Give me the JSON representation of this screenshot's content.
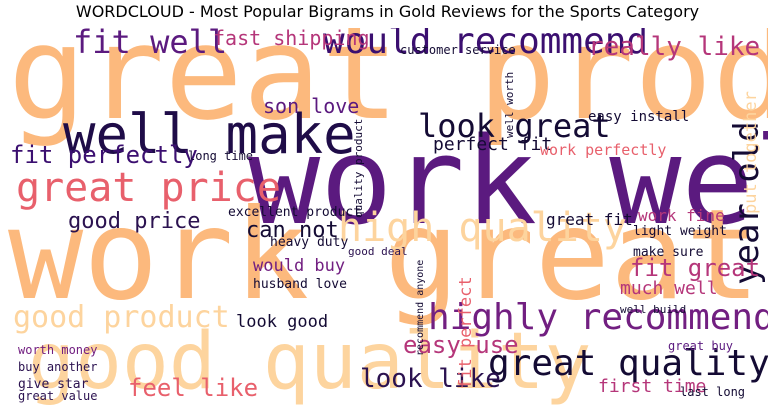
{
  "title": "WORDCLOUD - Most Popular Bigrams in Gold Reviews for the Sports Category",
  "palette": {
    "peach": "#fcb97d",
    "light_peach": "#fdd49e",
    "salmon": "#f3766e",
    "coral": "#e8606c",
    "magenta": "#b5367a",
    "purple": "#721f81",
    "deep_purple": "#5b1a7f",
    "dark_indigo": "#2b1250",
    "near_black": "#140b34"
  },
  "words": [
    {
      "text": "work well",
      "weight": 1.0,
      "color": "#5b1a7f"
    },
    {
      "text": "great product",
      "weight": 0.97,
      "color": "#fcb97d"
    },
    {
      "text": "work great",
      "weight": 0.96,
      "color": "#fcb97d"
    },
    {
      "text": "good quality",
      "weight": 0.7,
      "color": "#fdd49e"
    },
    {
      "text": "well make",
      "weight": 0.55,
      "color": "#1f0c48"
    },
    {
      "text": "great price",
      "weight": 0.42,
      "color": "#e8606c"
    },
    {
      "text": "would recommend",
      "weight": 0.42,
      "color": "#3b0f70"
    },
    {
      "text": "highly recommend",
      "weight": 0.42,
      "color": "#721f81"
    },
    {
      "text": "great quality",
      "weight": 0.42,
      "color": "#140b34"
    },
    {
      "text": "good product",
      "weight": 0.4,
      "color": "#fdd49e"
    },
    {
      "text": "year old",
      "weight": 0.4,
      "color": "#140b34"
    },
    {
      "text": "look great",
      "weight": 0.36,
      "color": "#140b34"
    },
    {
      "text": "high quality",
      "weight": 0.38,
      "color": "#fdd49e"
    },
    {
      "text": "fit well",
      "weight": 0.36,
      "color": "#5b1a7f"
    },
    {
      "text": "fit perfectly",
      "weight": 0.3,
      "color": "#3b0f70"
    },
    {
      "text": "look like",
      "weight": 0.32,
      "color": "#2b1250"
    },
    {
      "text": "feel like",
      "weight": 0.3,
      "color": "#e8606c"
    },
    {
      "text": "easy use",
      "weight": 0.3,
      "color": "#b5367a"
    },
    {
      "text": "fit great",
      "weight": 0.28,
      "color": "#b5367a"
    },
    {
      "text": "really like",
      "weight": 0.3,
      "color": "#b5367a"
    },
    {
      "text": "fast shipping",
      "weight": 0.26,
      "color": "#b5367a"
    },
    {
      "text": "good price",
      "weight": 0.26,
      "color": "#2b1250"
    },
    {
      "text": "can not",
      "weight": 0.24,
      "color": "#140b34"
    },
    {
      "text": "perfect fit",
      "weight": 0.22,
      "color": "#140b34"
    },
    {
      "text": "son love",
      "weight": 0.22,
      "color": "#5b1a7f"
    },
    {
      "text": "first time",
      "weight": 0.22,
      "color": "#b5367a"
    },
    {
      "text": "much well",
      "weight": 0.2,
      "color": "#b5367a"
    },
    {
      "text": "would buy",
      "weight": 0.2,
      "color": "#721f81"
    },
    {
      "text": "look good",
      "weight": 0.2,
      "color": "#140b34"
    },
    {
      "text": "great fit",
      "weight": 0.18,
      "color": "#140b34"
    },
    {
      "text": "work fine",
      "weight": 0.18,
      "color": "#b5367a"
    },
    {
      "text": "put together",
      "weight": 0.18,
      "color": "#fdd49e"
    },
    {
      "text": "fit perfect",
      "weight": 0.16,
      "color": "#e8606c"
    },
    {
      "text": "work perfectly",
      "weight": 0.16,
      "color": "#e8606c"
    },
    {
      "text": "easy install",
      "weight": 0.16,
      "color": "#140b34"
    },
    {
      "text": "excellent product",
      "weight": 0.15,
      "color": "#140b34"
    },
    {
      "text": "good deal",
      "weight": 0.14,
      "color": "#2b1250"
    },
    {
      "text": "light weight",
      "weight": 0.15,
      "color": "#140b34"
    },
    {
      "text": "make sure",
      "weight": 0.14,
      "color": "#140b34"
    },
    {
      "text": "heavy duty",
      "weight": 0.14,
      "color": "#140b34"
    },
    {
      "text": "husband love",
      "weight": 0.14,
      "color": "#140b34"
    },
    {
      "text": "give star",
      "weight": 0.14,
      "color": "#2b1250"
    },
    {
      "text": "last long",
      "weight": 0.14,
      "color": "#140b34"
    },
    {
      "text": "great value",
      "weight": 0.14,
      "color": "#2b1250"
    },
    {
      "text": "quality product",
      "weight": 0.13,
      "color": "#140b34"
    },
    {
      "text": "customer service",
      "weight": 0.12,
      "color": "#140b34"
    },
    {
      "text": "long time",
      "weight": 0.13,
      "color": "#140b34"
    },
    {
      "text": "buy another",
      "weight": 0.13,
      "color": "#2b1250"
    },
    {
      "text": "worth money",
      "weight": 0.12,
      "color": "#721f81"
    },
    {
      "text": "great buy",
      "weight": 0.12,
      "color": "#5b1a7f"
    },
    {
      "text": "well build",
      "weight": 0.12,
      "color": "#140b34"
    },
    {
      "text": "well worth",
      "weight": 0.12,
      "color": "#140b34"
    },
    {
      "text": "recommend anyone",
      "weight": 0.11,
      "color": "#140b34"
    }
  ]
}
